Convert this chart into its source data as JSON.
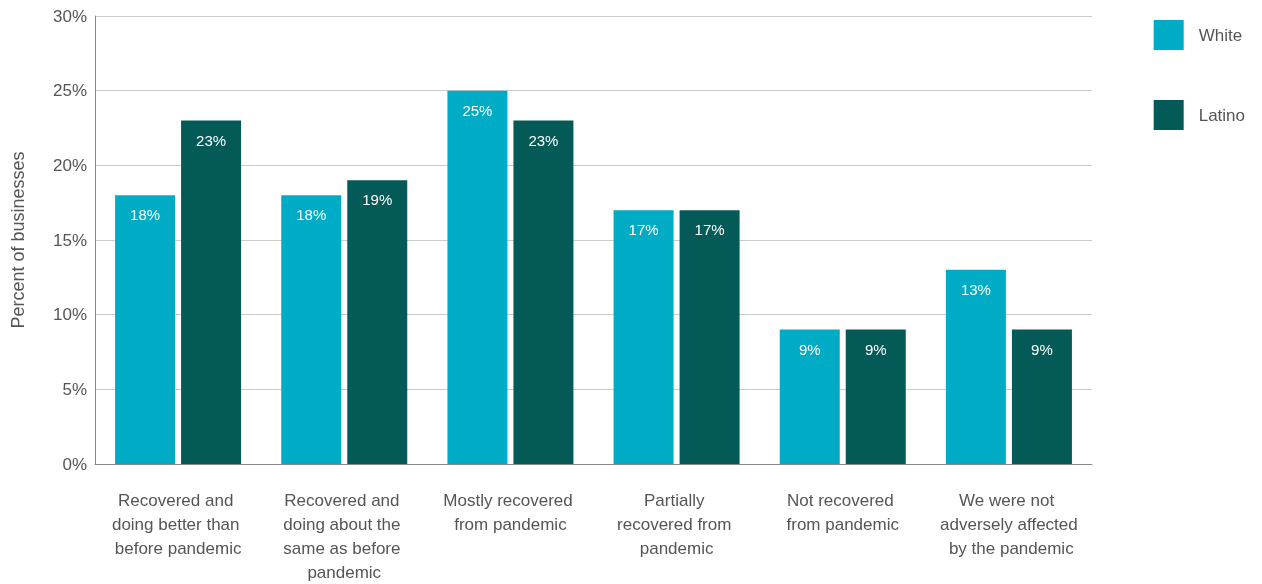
{
  "chart_data": {
    "type": "bar",
    "ylabel": "Percent of businesses",
    "categories": [
      "Recovered and doing better than before pandemic",
      "Recovered and doing about the same as before pandemic",
      "Mostly recovered from pandemic",
      "Partially recovered from pandemic",
      "Not recovered from pandemic",
      "We were not adversely affected by the pandemic"
    ],
    "series": [
      {
        "name": "White",
        "color": "#00abc5",
        "values": [
          18,
          18,
          25,
          17,
          9,
          13
        ],
        "value_labels": [
          "18%",
          "18%",
          "25%",
          "17%",
          "9%",
          "13%"
        ]
      },
      {
        "name": "Latino",
        "color": "#045a56",
        "values": [
          23,
          19,
          23,
          17,
          9,
          9
        ],
        "value_labels": [
          "23%",
          "19%",
          "23%",
          "17%",
          "9%",
          "9%"
        ]
      }
    ],
    "ylim": [
      0,
      30
    ],
    "yticks": [
      {
        "value": 0,
        "label": "0%"
      },
      {
        "value": 5,
        "label": "5%"
      },
      {
        "value": 10,
        "label": "10%"
      },
      {
        "value": 15,
        "label": "15%"
      },
      {
        "value": 20,
        "label": "20%"
      },
      {
        "value": 25,
        "label": "25%"
      },
      {
        "value": 30,
        "label": "30%"
      }
    ],
    "grid": "y",
    "legend": "top right"
  }
}
